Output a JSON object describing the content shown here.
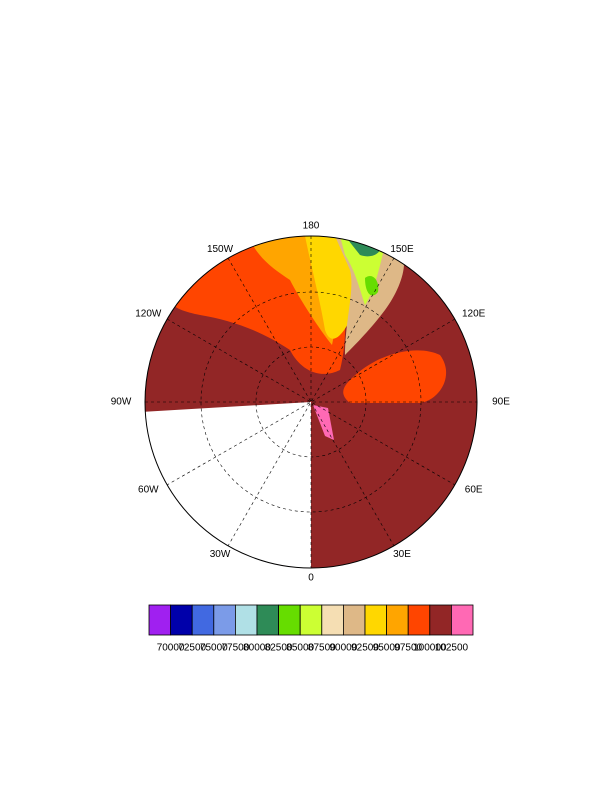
{
  "map": {
    "longitude_labels": [
      "0",
      "30E",
      "60E",
      "90E",
      "120E",
      "150E",
      "180",
      "150W",
      "120W",
      "90W",
      "60W",
      "30W"
    ]
  },
  "colorbar": {
    "levels": [
      70000,
      72500,
      75000,
      77500,
      80000,
      82500,
      85000,
      87500,
      90000,
      92500,
      95000,
      97500,
      100000,
      102500
    ],
    "colors": [
      "#a020f0",
      "#0000aa",
      "#4169e1",
      "#7b9be8",
      "#b0e0e6",
      "#2e8b57",
      "#66dd00",
      "#ccff33",
      "#f5deb3",
      "#deb887",
      "#ffd700",
      "#ffa500",
      "#ff4500",
      "#922626",
      "#ff69b4"
    ]
  }
}
